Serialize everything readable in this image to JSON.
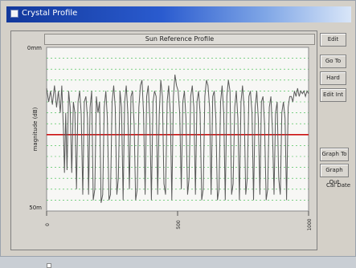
{
  "window": {
    "title": "Crystal Profile"
  },
  "chart_data": {
    "type": "line",
    "title": "Sun Reference Profile",
    "xlabel": "",
    "ylabel": "magnitude (dB)",
    "ylim": [
      0,
      30
    ],
    "xlim": [
      0,
      1000
    ],
    "y_tick_labels": {
      "top": "0mm",
      "bottom": "50m"
    },
    "x_tick_labels": [
      "0",
      "500",
      "1000"
    ],
    "threshold": 14,
    "grid": true,
    "series": [
      {
        "values": [
          {
            "x": 0,
            "y": 22.5
          },
          {
            "x": 8,
            "y": 20
          },
          {
            "x": 15,
            "y": 22
          },
          {
            "x": 22,
            "y": 19.5
          },
          {
            "x": 30,
            "y": 23
          },
          {
            "x": 38,
            "y": 19
          },
          {
            "x": 45,
            "y": 22
          },
          {
            "x": 52,
            "y": 18
          },
          {
            "x": 58,
            "y": 23
          },
          {
            "x": 64,
            "y": 15
          },
          {
            "x": 68,
            "y": 7
          },
          {
            "x": 73,
            "y": 18
          },
          {
            "x": 78,
            "y": 7.5
          },
          {
            "x": 84,
            "y": 22
          },
          {
            "x": 90,
            "y": 19
          },
          {
            "x": 96,
            "y": 7
          },
          {
            "x": 102,
            "y": 20
          },
          {
            "x": 108,
            "y": 18
          },
          {
            "x": 114,
            "y": 4
          },
          {
            "x": 120,
            "y": 20
          },
          {
            "x": 126,
            "y": 22
          },
          {
            "x": 132,
            "y": 18
          },
          {
            "x": 138,
            "y": 3
          },
          {
            "x": 144,
            "y": 20
          },
          {
            "x": 150,
            "y": 21
          },
          {
            "x": 156,
            "y": 17
          },
          {
            "x": 160,
            "y": 3
          },
          {
            "x": 166,
            "y": 19
          },
          {
            "x": 172,
            "y": 22
          },
          {
            "x": 178,
            "y": 2
          },
          {
            "x": 184,
            "y": 4
          },
          {
            "x": 190,
            "y": 21
          },
          {
            "x": 196,
            "y": 18
          },
          {
            "x": 202,
            "y": 20
          },
          {
            "x": 208,
            "y": 1.5
          },
          {
            "x": 214,
            "y": 3
          },
          {
            "x": 220,
            "y": 19
          },
          {
            "x": 226,
            "y": 22
          },
          {
            "x": 232,
            "y": 17
          },
          {
            "x": 238,
            "y": 2
          },
          {
            "x": 244,
            "y": 3
          },
          {
            "x": 250,
            "y": 20
          },
          {
            "x": 256,
            "y": 23
          },
          {
            "x": 262,
            "y": 19
          },
          {
            "x": 268,
            "y": 3
          },
          {
            "x": 274,
            "y": 6
          },
          {
            "x": 280,
            "y": 22
          },
          {
            "x": 286,
            "y": 19
          },
          {
            "x": 292,
            "y": 2
          },
          {
            "x": 298,
            "y": 20
          },
          {
            "x": 304,
            "y": 23
          },
          {
            "x": 310,
            "y": 18
          },
          {
            "x": 316,
            "y": 4
          },
          {
            "x": 322,
            "y": 21
          },
          {
            "x": 328,
            "y": 22
          },
          {
            "x": 334,
            "y": 16
          },
          {
            "x": 340,
            "y": 2
          },
          {
            "x": 346,
            "y": 4
          },
          {
            "x": 352,
            "y": 19
          },
          {
            "x": 358,
            "y": 23
          },
          {
            "x": 364,
            "y": 24
          },
          {
            "x": 370,
            "y": 18
          },
          {
            "x": 376,
            "y": 3
          },
          {
            "x": 382,
            "y": 21
          },
          {
            "x": 388,
            "y": 23
          },
          {
            "x": 394,
            "y": 17
          },
          {
            "x": 400,
            "y": 2
          },
          {
            "x": 406,
            "y": 20
          },
          {
            "x": 412,
            "y": 22
          },
          {
            "x": 418,
            "y": 21
          },
          {
            "x": 424,
            "y": 3
          },
          {
            "x": 430,
            "y": 18
          },
          {
            "x": 436,
            "y": 24
          },
          {
            "x": 442,
            "y": 21
          },
          {
            "x": 448,
            "y": 5
          },
          {
            "x": 454,
            "y": 3
          },
          {
            "x": 460,
            "y": 20
          },
          {
            "x": 466,
            "y": 23
          },
          {
            "x": 472,
            "y": 18
          },
          {
            "x": 478,
            "y": 2
          },
          {
            "x": 484,
            "y": 21
          },
          {
            "x": 490,
            "y": 25
          },
          {
            "x": 496,
            "y": 23
          },
          {
            "x": 502,
            "y": 22
          },
          {
            "x": 508,
            "y": 18
          },
          {
            "x": 514,
            "y": 4
          },
          {
            "x": 520,
            "y": 20
          },
          {
            "x": 526,
            "y": 22
          },
          {
            "x": 532,
            "y": 17
          },
          {
            "x": 538,
            "y": 3
          },
          {
            "x": 544,
            "y": 6
          },
          {
            "x": 550,
            "y": 21
          },
          {
            "x": 556,
            "y": 23
          },
          {
            "x": 562,
            "y": 19
          },
          {
            "x": 568,
            "y": 3
          },
          {
            "x": 574,
            "y": 20
          },
          {
            "x": 580,
            "y": 22
          },
          {
            "x": 586,
            "y": 18
          },
          {
            "x": 592,
            "y": 2
          },
          {
            "x": 598,
            "y": 4
          },
          {
            "x": 604,
            "y": 21
          },
          {
            "x": 610,
            "y": 24
          },
          {
            "x": 616,
            "y": 23
          },
          {
            "x": 622,
            "y": 19
          },
          {
            "x": 628,
            "y": 3
          },
          {
            "x": 634,
            "y": 21
          },
          {
            "x": 640,
            "y": 22
          },
          {
            "x": 646,
            "y": 17
          },
          {
            "x": 652,
            "y": 2
          },
          {
            "x": 658,
            "y": 4
          },
          {
            "x": 664,
            "y": 20
          },
          {
            "x": 670,
            "y": 23
          },
          {
            "x": 676,
            "y": 18
          },
          {
            "x": 682,
            "y": 2
          },
          {
            "x": 688,
            "y": 21
          },
          {
            "x": 694,
            "y": 24
          },
          {
            "x": 700,
            "y": 22
          },
          {
            "x": 706,
            "y": 3
          },
          {
            "x": 712,
            "y": 5
          },
          {
            "x": 718,
            "y": 19
          },
          {
            "x": 724,
            "y": 22
          },
          {
            "x": 730,
            "y": 17
          },
          {
            "x": 736,
            "y": 2
          },
          {
            "x": 742,
            "y": 20
          },
          {
            "x": 748,
            "y": 23
          },
          {
            "x": 754,
            "y": 19
          },
          {
            "x": 760,
            "y": 3
          },
          {
            "x": 766,
            "y": 6
          },
          {
            "x": 772,
            "y": 21
          },
          {
            "x": 778,
            "y": 22
          },
          {
            "x": 784,
            "y": 18
          },
          {
            "x": 790,
            "y": 2
          },
          {
            "x": 796,
            "y": 19
          },
          {
            "x": 802,
            "y": 22
          },
          {
            "x": 808,
            "y": 17
          },
          {
            "x": 814,
            "y": 3
          },
          {
            "x": 820,
            "y": 20
          },
          {
            "x": 826,
            "y": 21
          },
          {
            "x": 832,
            "y": 16
          },
          {
            "x": 838,
            "y": 2
          },
          {
            "x": 844,
            "y": 4
          },
          {
            "x": 850,
            "y": 19
          },
          {
            "x": 856,
            "y": 21
          },
          {
            "x": 862,
            "y": 15
          },
          {
            "x": 868,
            "y": 3
          },
          {
            "x": 874,
            "y": 18
          },
          {
            "x": 880,
            "y": 20
          },
          {
            "x": 886,
            "y": 6
          },
          {
            "x": 892,
            "y": 3
          },
          {
            "x": 898,
            "y": 18
          },
          {
            "x": 904,
            "y": 20
          },
          {
            "x": 910,
            "y": 17
          },
          {
            "x": 916,
            "y": 2
          },
          {
            "x": 922,
            "y": 19
          },
          {
            "x": 928,
            "y": 21
          },
          {
            "x": 934,
            "y": 21
          },
          {
            "x": 940,
            "y": 20
          },
          {
            "x": 946,
            "y": 22
          },
          {
            "x": 952,
            "y": 21
          },
          {
            "x": 958,
            "y": 22.5
          },
          {
            "x": 964,
            "y": 21
          },
          {
            "x": 970,
            "y": 22
          },
          {
            "x": 976,
            "y": 21.5
          },
          {
            "x": 982,
            "y": 22
          },
          {
            "x": 988,
            "y": 21
          },
          {
            "x": 994,
            "y": 22
          },
          {
            "x": 1000,
            "y": 21.5
          }
        ]
      }
    ]
  },
  "buttons": {
    "b1": "Edit",
    "b2": "Go To",
    "b3": "Hard",
    "b4": "Edit Int",
    "b5": "Graph To",
    "b6": "Graph Out"
  },
  "options": {
    "o1": "Cal Date"
  },
  "colors": {
    "line": "#5a5a5a",
    "threshold": "#cc1111",
    "grid": "#33bb44",
    "accent": "#1c3fa6"
  }
}
